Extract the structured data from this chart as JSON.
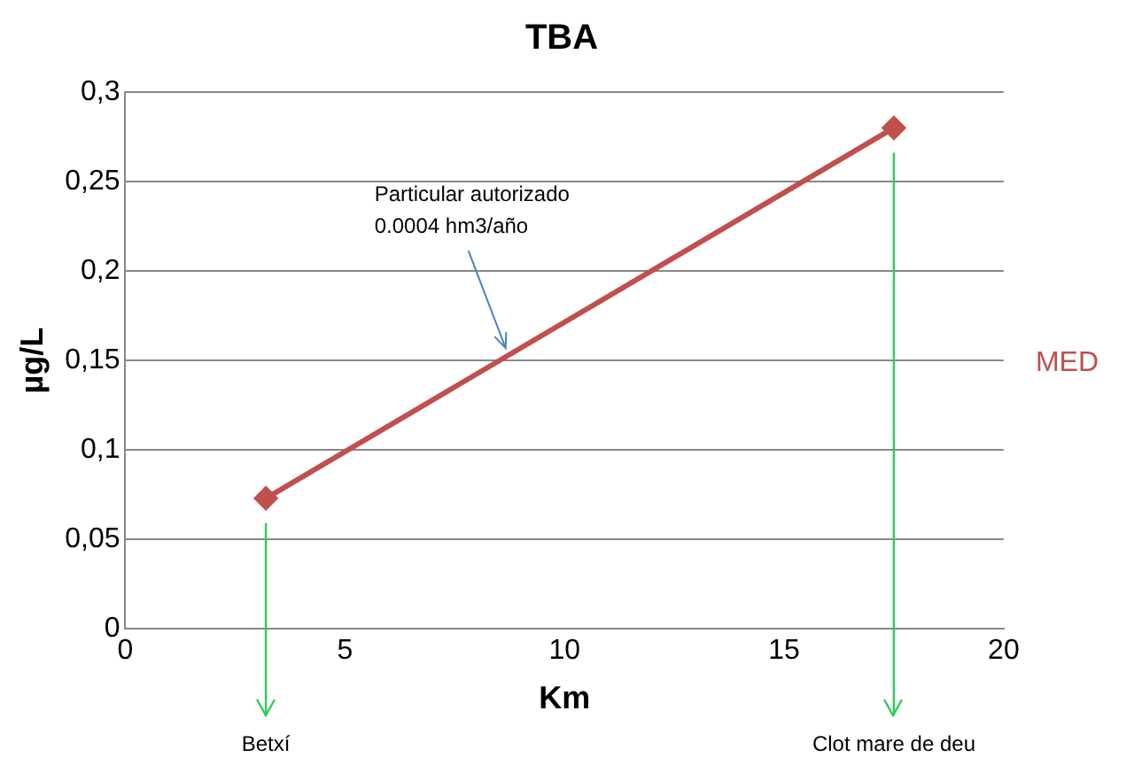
{
  "chart_data": {
    "type": "line",
    "title": "TBA",
    "xlabel": "Km",
    "ylabel": "µg/L",
    "x": [
      3.2,
      17.5
    ],
    "series": [
      {
        "name": "MED",
        "color": "#c0504d",
        "values": [
          0.073,
          0.28
        ]
      }
    ],
    "xlim": [
      0,
      20
    ],
    "xticks": [
      0,
      5,
      10,
      15,
      20
    ],
    "ylim": [
      0,
      0.3
    ],
    "yticks": [
      0,
      {
        "value": 0.05,
        "label": "0,05"
      },
      {
        "value": 0.1,
        "label": "0,1"
      },
      {
        "value": 0.15,
        "label": "0,15"
      },
      {
        "value": 0.2,
        "label": "0,2"
      },
      {
        "value": 0.25,
        "label": "0,25"
      },
      {
        "value": 0.3,
        "label": "0,3"
      }
    ],
    "grid": "y",
    "legend": "right",
    "marker": "diamond",
    "line_style": "solid",
    "ref_lines": [
      {
        "axis": "x",
        "value": 3.2,
        "label": "Betxí",
        "color": "#2ecc5a"
      },
      {
        "axis": "x",
        "value": 17.5,
        "label": "Clot mare de deu",
        "color": "#2ecc5a"
      }
    ],
    "annotations": [
      {
        "text": "Particular autorizado\n0.0004 hm3/año",
        "x": 8.7,
        "y": 0.155
      }
    ]
  }
}
